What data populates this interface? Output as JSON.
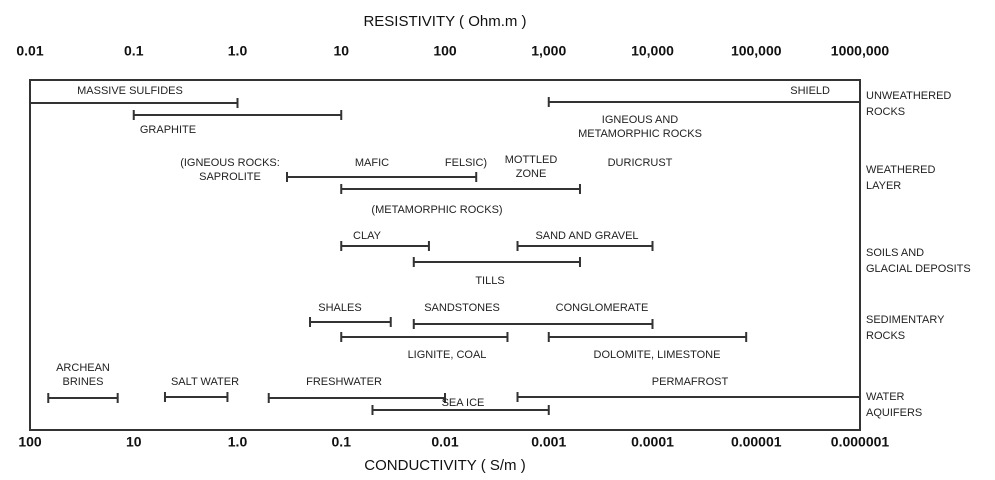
{
  "chart_data": {
    "type": "range",
    "title": "RESISTIVITY ( Ohm.m )",
    "x2_title": "CONDUCTIVITY ( S/m )",
    "log": true,
    "xlim": [
      0.01,
      1000000
    ],
    "xticks": [
      0.01,
      0.1,
      {
        "value": 1,
        "label": "1.0"
      },
      10,
      100,
      {
        "value": 1000,
        "label": "1,000"
      },
      {
        "value": 10000,
        "label": "10,000"
      },
      {
        "value": 100000,
        "label": "100,000"
      },
      {
        "value": 1000000,
        "label": "1000,000"
      }
    ],
    "x2lim": [
      100,
      1e-06
    ],
    "x2ticks": [
      100,
      10,
      {
        "value": 1,
        "label": "1.0"
      },
      0.1,
      0.01,
      0.001,
      0.0001,
      1e-05,
      1e-06
    ],
    "color": "#333333",
    "groups": [
      [
        "UNWEATHERED",
        "ROCKS"
      ],
      [
        "WEATHERED",
        "LAYER"
      ],
      [
        "SOILS AND",
        "GLACIAL DEPOSITS"
      ],
      [
        "SEDIMENTARY",
        "ROCKS"
      ],
      [
        "WATER",
        "AQUIFERS"
      ]
    ],
    "ranges": [
      {
        "name": "MASSIVE SULFIDES",
        "low": 0.01,
        "high": 1
      },
      {
        "name": "GRAPHITE",
        "low": 0.1,
        "high": 10
      },
      {
        "name": "SHIELD",
        "low": 1000,
        "high": 1000000
      },
      {
        "name": "MAFIC",
        "low": 3,
        "high": 200
      },
      {
        "name": "(METAMORPHIC ROCKS)",
        "low": 10,
        "high": 2000
      },
      {
        "name": "CLAY",
        "low": 10,
        "high": 70
      },
      {
        "name": "SAND AND GRAVEL",
        "low": 500,
        "high": 10000
      },
      {
        "name": "TILLS",
        "low": 50,
        "high": 2000
      },
      {
        "name": "SHALES",
        "low": 5,
        "high": 30
      },
      {
        "name": "SANDSTONES",
        "low": 50,
        "high": 10000
      },
      {
        "name": "LIGNITE,  COAL",
        "low": 10,
        "high": 400
      },
      {
        "name": "DOLOMITE,  LIMESTONE",
        "low": 1000,
        "high": 80000
      },
      {
        "name": "ARCHEAN",
        "low": 0.015,
        "high": 0.07
      },
      {
        "name": "SALT WATER",
        "low": 0.2,
        "high": 0.8
      },
      {
        "name": "FRESHWATER",
        "low": 2,
        "high": 100
      },
      {
        "name": "PERMAFROST",
        "low": 500,
        "high": 1000000
      },
      {
        "name": "SEA ICE",
        "low": 20,
        "high": 1000
      }
    ],
    "annotations": [
      "IGNEOUS AND",
      "METAMORPHIC ROCKS",
      "(IGNEOUS ROCKS:",
      "SAPROLITE",
      "FELSIC)",
      "MOTTLED",
      "ZONE",
      "DURICRUST",
      "CONGLOMERATE",
      "BRINES"
    ]
  }
}
